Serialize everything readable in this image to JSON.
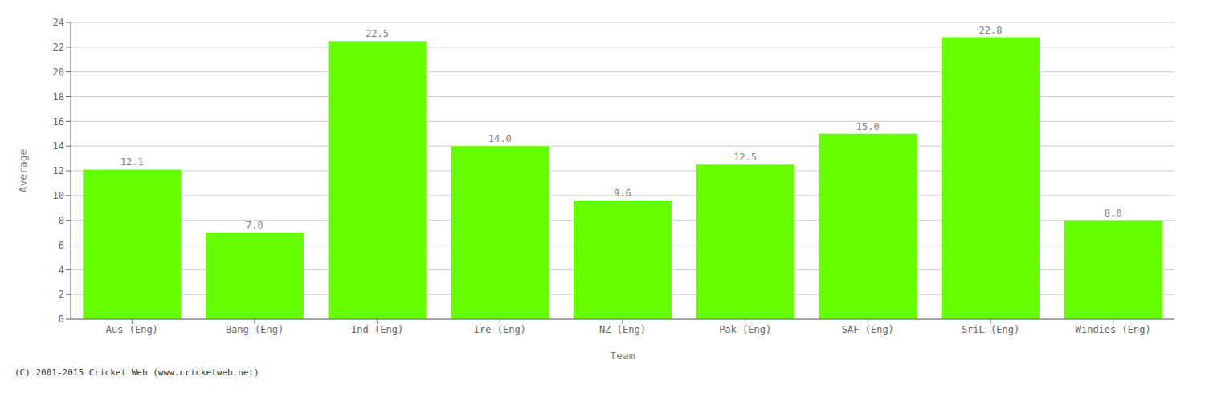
{
  "chart_data": {
    "type": "bar",
    "categories": [
      "Aus (Eng)",
      "Bang (Eng)",
      "Ind (Eng)",
      "Ire (Eng)",
      "NZ (Eng)",
      "Pak (Eng)",
      "SAF (Eng)",
      "SriL (Eng)",
      "Windies (Eng)"
    ],
    "values": [
      12.1,
      7.0,
      22.5,
      14.0,
      9.6,
      12.5,
      15.0,
      22.8,
      8.0
    ],
    "value_labels": [
      "12.1",
      "7.0",
      "22.5",
      "14.0",
      "9.6",
      "12.5",
      "15.0",
      "22.8",
      "8.0"
    ],
    "data_labels": true,
    "color": "#66ff00",
    "xlabel": "Team",
    "ylabel": "Average",
    "ylim": [
      0,
      24
    ],
    "yticks": [
      0,
      2,
      4,
      6,
      8,
      10,
      12,
      14,
      16,
      18,
      20,
      22,
      24
    ],
    "grid": true,
    "annotations": [
      "(C) 2001-2015 Cricket Web (www.cricketweb.net)"
    ]
  }
}
